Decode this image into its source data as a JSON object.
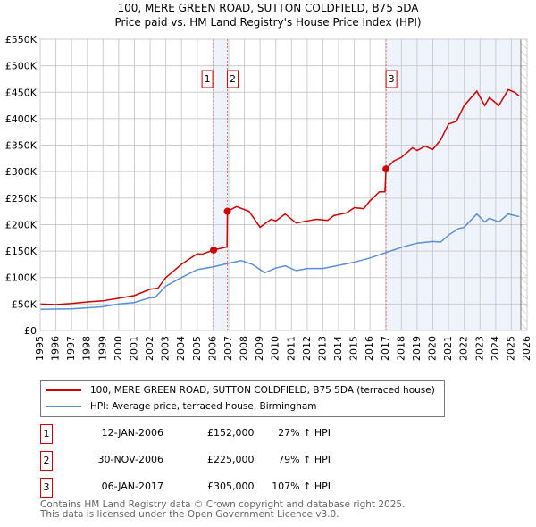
{
  "chart_data": {
    "type": "line",
    "title": "100, MERE GREEN ROAD, SUTTON COLDFIELD, B75 5DA",
    "subtitle": "Price paid vs. HM Land Registry's House Price Index (HPI)",
    "xlim": [
      1995,
      2026
    ],
    "ylim": [
      0,
      550000
    ],
    "y_ticks": [
      0,
      50000,
      100000,
      150000,
      200000,
      250000,
      300000,
      350000,
      400000,
      450000,
      500000,
      550000
    ],
    "y_tick_labels": [
      "£0",
      "£50K",
      "£100K",
      "£150K",
      "£200K",
      "£250K",
      "£300K",
      "£350K",
      "£400K",
      "£450K",
      "£500K",
      "£550K"
    ],
    "x_ticks": [
      1995,
      1996,
      1997,
      1998,
      1999,
      2000,
      2001,
      2002,
      2003,
      2004,
      2005,
      2006,
      2007,
      2008,
      2009,
      2010,
      2011,
      2012,
      2013,
      2014,
      2015,
      2016,
      2017,
      2018,
      2019,
      2020,
      2021,
      2022,
      2023,
      2024,
      2025,
      2026
    ],
    "grid": true,
    "shaded_ranges": [
      [
        2006.04,
        2006.92
      ],
      [
        2017.02,
        2025.6
      ]
    ],
    "hatched_from": 2025.6,
    "series": [
      {
        "name": "100, MERE GREEN ROAD, SUTTON COLDFIELD, B75 5DA (terraced house)",
        "color": "#cc0000",
        "x": [
          1995,
          1996,
          1997,
          1998,
          1999,
          2000,
          2001,
          2002,
          2002.5,
          2003,
          2004,
          2005,
          2005.3,
          2006.04,
          2006.9,
          2006.92,
          2007.5,
          2008.3,
          2009,
          2009.7,
          2010,
          2010.6,
          2011.3,
          2012,
          2012.6,
          2013.3,
          2013.7,
          2014.5,
          2015,
          2015.6,
          2016,
          2016.6,
          2016.95,
          2017.02,
          2017.5,
          2018,
          2018.7,
          2019,
          2019.5,
          2020,
          2020.5,
          2021,
          2021.5,
          2022,
          2022.8,
          2023.3,
          2023.6,
          2024.2,
          2024.8,
          2025.2,
          2025.5
        ],
        "y": [
          50000,
          49000,
          51000,
          54000,
          56000,
          61000,
          66000,
          78000,
          80000,
          100000,
          125000,
          145000,
          144000,
          152000,
          158000,
          225000,
          234000,
          225000,
          195000,
          210000,
          207000,
          220000,
          203000,
          207000,
          210000,
          208000,
          217000,
          222000,
          232000,
          230000,
          245000,
          262000,
          262000,
          305000,
          320000,
          327000,
          345000,
          340000,
          348000,
          342000,
          360000,
          390000,
          395000,
          425000,
          452000,
          425000,
          440000,
          425000,
          455000,
          450000,
          443000
        ]
      },
      {
        "name": "HPI: Average price, terraced house, Birmingham",
        "color": "#5b8fd4",
        "x": [
          1995,
          1997,
          1999,
          2000,
          2001,
          2002,
          2002.3,
          2003,
          2004,
          2005,
          2006,
          2007,
          2007.8,
          2008.5,
          2009.3,
          2010,
          2010.6,
          2011.3,
          2012,
          2013,
          2014,
          2015,
          2016,
          2017,
          2018,
          2019,
          2020,
          2020.5,
          2021,
          2021.6,
          2022,
          2022.8,
          2023.3,
          2023.6,
          2024.2,
          2024.8,
          2025.5
        ],
        "y": [
          40000,
          41000,
          45000,
          50000,
          53000,
          62000,
          62000,
          84000,
          100000,
          115000,
          120000,
          127000,
          132000,
          125000,
          109000,
          118000,
          122000,
          113000,
          117000,
          117000,
          123000,
          129000,
          137000,
          147000,
          157000,
          165000,
          168000,
          167000,
          180000,
          192000,
          195000,
          220000,
          205000,
          212000,
          205000,
          220000,
          215000
        ]
      }
    ],
    "sales": [
      {
        "label": "1",
        "x": 2006.04,
        "y": 152000,
        "date": "12-JAN-2006",
        "price": "£152,000",
        "hpi": "27% ↑ HPI"
      },
      {
        "label": "2",
        "x": 2006.92,
        "y": 225000,
        "date": "30-NOV-2006",
        "price": "£225,000",
        "hpi": "79% ↑ HPI"
      },
      {
        "label": "3",
        "x": 2017.02,
        "y": 305000,
        "date": "06-JAN-2017",
        "price": "£305,000",
        "hpi": "107% ↑ HPI"
      }
    ],
    "legend_placement": "bottom",
    "footer": [
      "Contains HM Land Registry data © Crown copyright and database right 2025.",
      "This data is licensed under the Open Government Licence v3.0."
    ]
  }
}
